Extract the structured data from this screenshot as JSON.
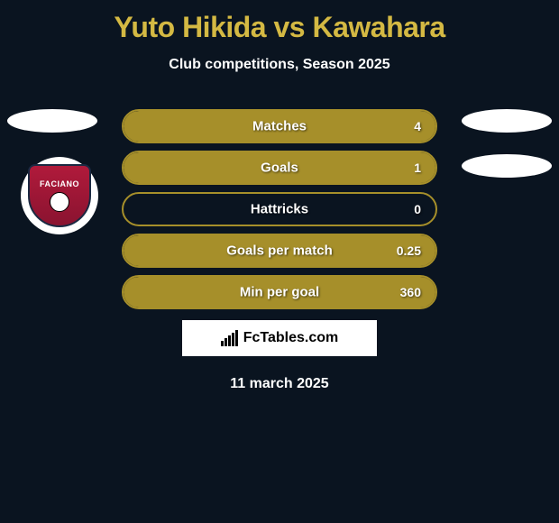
{
  "title": "Yuto Hikida vs Kawahara",
  "subtitle": "Club competitions, Season 2025",
  "date": "11 march 2025",
  "logo_text": "FcTables.com",
  "colors": {
    "background": "#0a1420",
    "accent": "#a68f2a",
    "title": "#d4b943",
    "text": "#ffffff"
  },
  "badge": {
    "text": "FACIANO",
    "bg_start": "#b01a3b",
    "bg_end": "#8a1330"
  },
  "stats": [
    {
      "label": "Matches",
      "value": "4",
      "fill_percent": 100
    },
    {
      "label": "Goals",
      "value": "1",
      "fill_percent": 100
    },
    {
      "label": "Hattricks",
      "value": "0",
      "fill_percent": 0
    },
    {
      "label": "Goals per match",
      "value": "0.25",
      "fill_percent": 100
    },
    {
      "label": "Min per goal",
      "value": "360",
      "fill_percent": 100
    }
  ],
  "logo_bar_heights": [
    6,
    9,
    12,
    15,
    18
  ]
}
